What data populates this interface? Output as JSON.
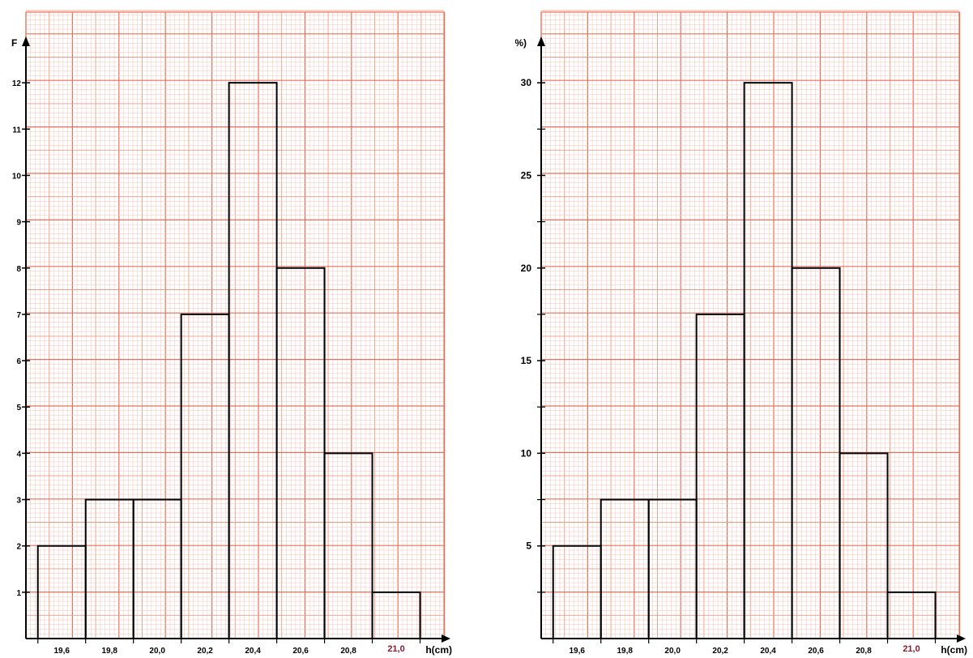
{
  "chart_data": [
    {
      "type": "bar",
      "ylabel": "F",
      "xlabel": "h(cm)",
      "bin_edges": [
        19.5,
        19.7,
        19.9,
        20.1,
        20.3,
        20.5,
        20.7,
        20.9,
        21.1
      ],
      "values": [
        2,
        3,
        3,
        7,
        12,
        8,
        4,
        1
      ],
      "ylim": [
        0,
        13
      ],
      "xlim": [
        19.45,
        21.2
      ],
      "x_ticks": [
        19.6,
        19.8,
        20.0,
        20.2,
        20.4,
        20.6,
        20.8,
        21.0
      ],
      "x_tick_labels": [
        "19,6",
        "19,8",
        "20,0",
        "20,2",
        "20,4",
        "20,6",
        "20,8",
        "21,0"
      ],
      "y_ticks": [
        1,
        2,
        3,
        4,
        5,
        6,
        7,
        8,
        9,
        10,
        11,
        12
      ],
      "y_tick_labels": [
        "1",
        "2",
        "3",
        "4",
        "5",
        "6",
        "7",
        "8",
        "9",
        "10",
        "11",
        "12"
      ],
      "y_minor_ticks": [],
      "highlight_tick_label": "21,0",
      "grid": true,
      "colors": {
        "grid_minor": "#f6c2b6",
        "grid_mid": "#f09a86",
        "grid_major": "#e8705a",
        "bar": "#000000",
        "axis": "#000000",
        "highlight": "#8b1a2e"
      }
    },
    {
      "type": "bar",
      "ylabel": "F (%)",
      "xlabel": "h(cm)",
      "bin_edges": [
        19.5,
        19.7,
        19.9,
        20.1,
        20.3,
        20.5,
        20.7,
        20.9,
        21.1
      ],
      "values": [
        5,
        7.5,
        7.5,
        17.5,
        30,
        20,
        10,
        2.5
      ],
      "ylim": [
        0,
        32.5
      ],
      "xlim": [
        19.45,
        21.2
      ],
      "x_ticks": [
        19.6,
        19.8,
        20.0,
        20.2,
        20.4,
        20.6,
        20.8,
        21.0
      ],
      "x_tick_labels": [
        "19,6",
        "19,8",
        "20,0",
        "20,2",
        "20,4",
        "20,6",
        "20,8",
        "21,0"
      ],
      "y_ticks": [
        5,
        10,
        15,
        20,
        25,
        30
      ],
      "y_tick_labels": [
        "5",
        "10",
        "15",
        "20",
        "25",
        "30"
      ],
      "y_minor_ticks": [
        2.5,
        7.5,
        12.5,
        17.5,
        22.5,
        27.5
      ],
      "highlight_tick_label": "21,0",
      "grid": true,
      "colors": {
        "grid_minor": "#f6c2b6",
        "grid_mid": "#f09a86",
        "grid_major": "#e8705a",
        "bar": "#000000",
        "axis": "#000000",
        "highlight": "#8b1a2e"
      }
    }
  ]
}
